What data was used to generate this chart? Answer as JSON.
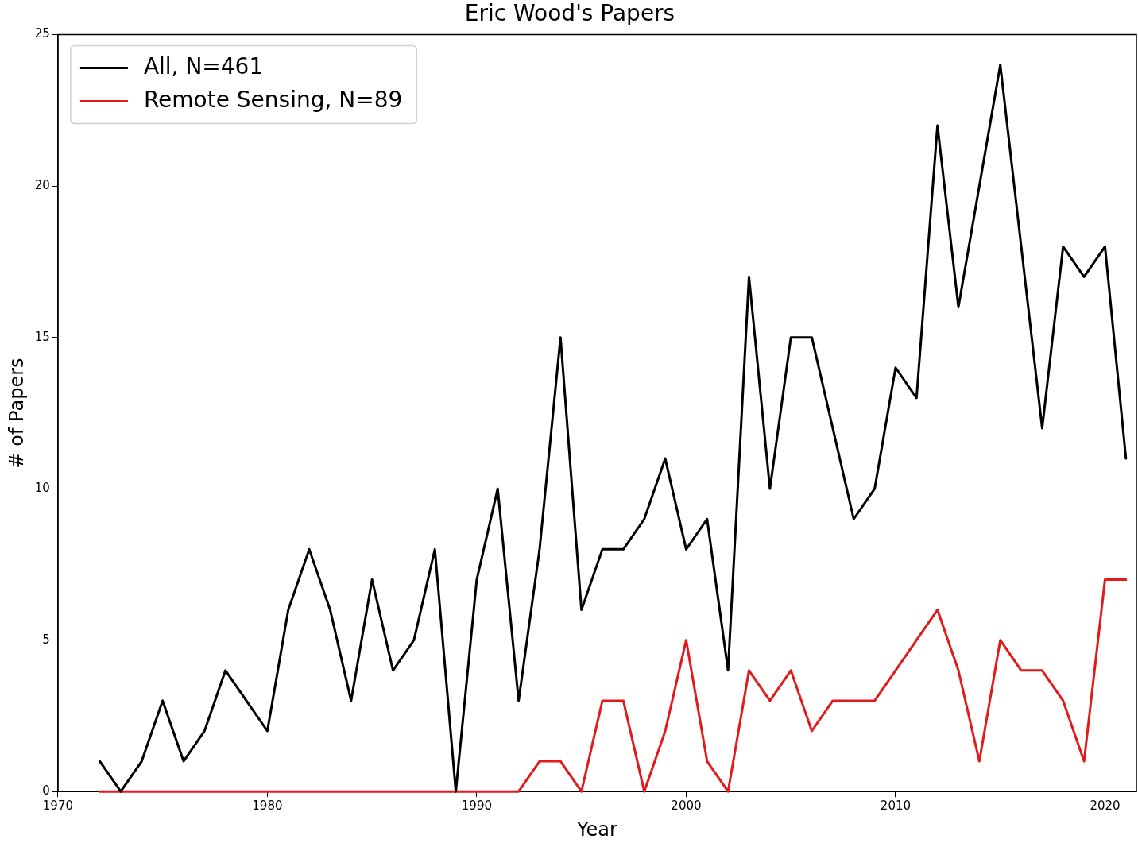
{
  "chart_data": {
    "type": "line",
    "title": "Eric Wood's Papers",
    "xlabel": "Year",
    "ylabel": "# of Papers",
    "x": [
      1972,
      1973,
      1974,
      1975,
      1976,
      1977,
      1978,
      1979,
      1980,
      1981,
      1982,
      1983,
      1984,
      1985,
      1986,
      1987,
      1988,
      1989,
      1990,
      1991,
      1992,
      1993,
      1994,
      1995,
      1996,
      1997,
      1998,
      1999,
      2000,
      2001,
      2002,
      2003,
      2004,
      2005,
      2006,
      2007,
      2008,
      2009,
      2010,
      2011,
      2012,
      2013,
      2014,
      2015,
      2016,
      2017,
      2018,
      2019,
      2020,
      2021
    ],
    "series": [
      {
        "name": "All, N=461",
        "color": "#000000",
        "values": [
          1,
          0,
          1,
          3,
          1,
          2,
          4,
          3,
          2,
          6,
          8,
          6,
          3,
          7,
          4,
          5,
          8,
          0,
          7,
          10,
          3,
          8,
          15,
          6,
          8,
          8,
          9,
          11,
          8,
          9,
          4,
          17,
          10,
          15,
          15,
          12,
          9,
          10,
          14,
          13,
          22,
          16,
          20,
          24,
          18,
          12,
          18,
          17,
          18,
          11
        ]
      },
      {
        "name": "Remote Sensing, N=89",
        "color": "#e31a1c",
        "values": [
          0,
          0,
          0,
          0,
          0,
          0,
          0,
          0,
          0,
          0,
          0,
          0,
          0,
          0,
          0,
          0,
          0,
          0,
          0,
          0,
          0,
          1,
          1,
          0,
          3,
          3,
          0,
          2,
          5,
          1,
          0,
          4,
          3,
          4,
          2,
          3,
          3,
          3,
          4,
          5,
          6,
          4,
          1,
          5,
          4,
          4,
          3,
          1,
          7,
          7
        ]
      }
    ],
    "xlim": [
      1970,
      2021.5
    ],
    "xticks": [
      1970,
      1980,
      1990,
      2000,
      2010,
      2020
    ],
    "ylim": [
      0,
      25
    ],
    "yticks": [
      0,
      5,
      10,
      15,
      20,
      25
    ],
    "grid": false,
    "legend": "top left",
    "marker": "none",
    "line_style": "solid"
  }
}
